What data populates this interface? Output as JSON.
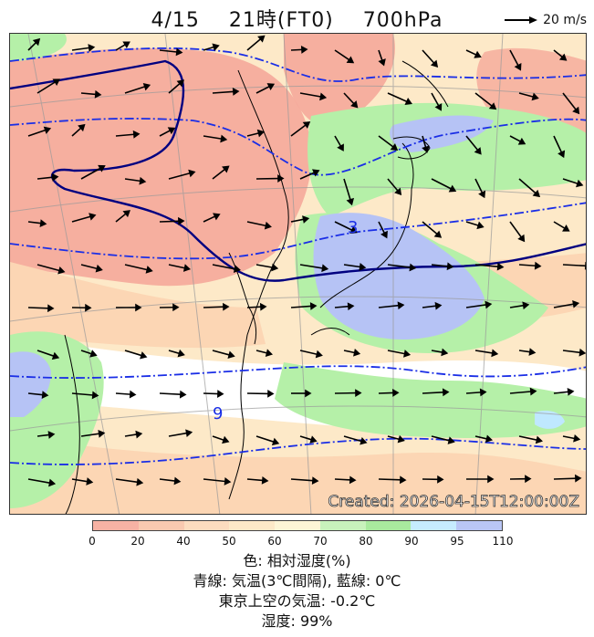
{
  "title": {
    "date": "4/15",
    "time": "21時(FT0)",
    "level": "700hPa"
  },
  "reference_arrow": {
    "label": "20 m/s"
  },
  "map": {
    "contour_labels": [
      "3",
      "9"
    ],
    "watermark": "Created: 2026-04-15T12:00:00Z",
    "colors": {
      "low": "#f5a99a",
      "mid_low": "#fcd6b4",
      "mid": "#fdeec0",
      "green": "#b5f0a8",
      "green2": "#88e07c",
      "cyan": "#bfe8ff",
      "blue": "#b6c3f5",
      "temp_line": "#1a2ee6",
      "zero_line": "#000080"
    }
  },
  "colorbar": {
    "ticks": [
      "0",
      "20",
      "40",
      "50",
      "60",
      "70",
      "80",
      "90",
      "95",
      "110"
    ],
    "colors": [
      "#f7b2a4",
      "#f9c9b0",
      "#fcdcbf",
      "#fde9c8",
      "#fdf5d6",
      "#c8f2bc",
      "#a9ea9e",
      "#c6ecff",
      "#b9c6f5"
    ]
  },
  "legend": {
    "line1": "色: 相対湿度(%)",
    "line2": "青線: 気温(3℃間隔), 藍線: 0℃",
    "line3": "東京上空の気温: -0.2℃",
    "line4": "湿度: 99%"
  }
}
